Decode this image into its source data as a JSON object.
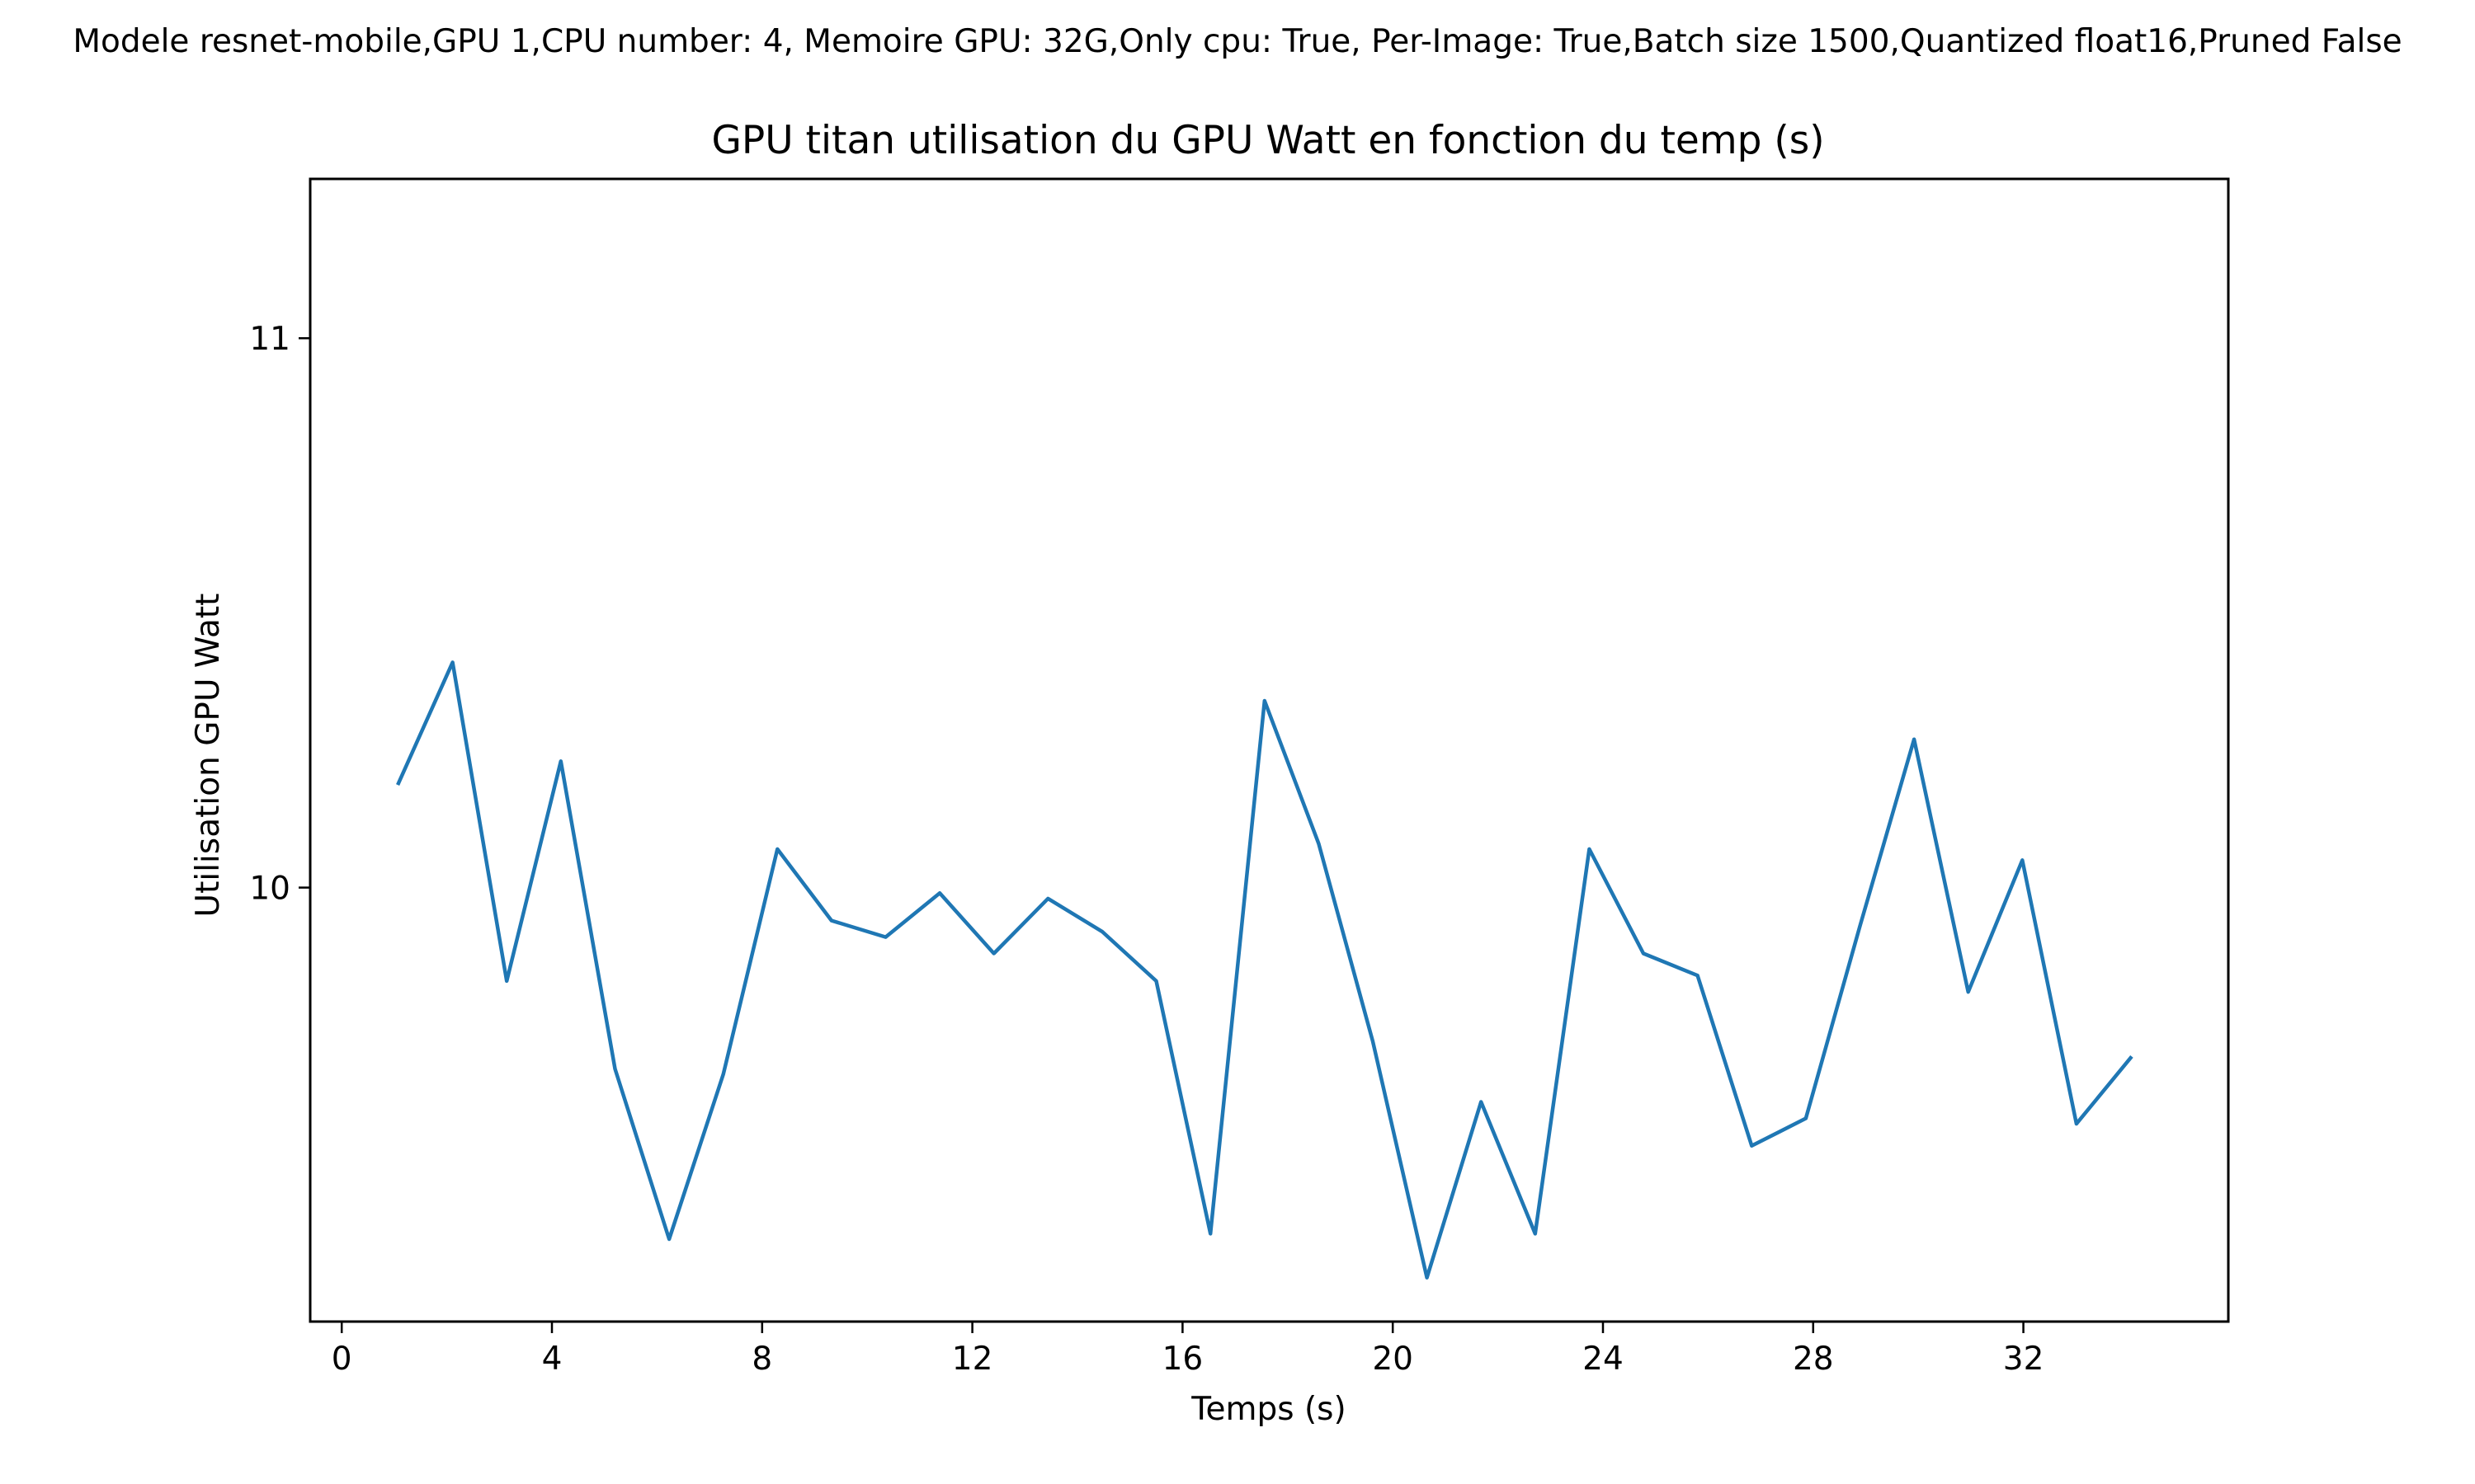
{
  "suptitle": "Modele resnet-mobile,GPU 1,CPU number: 4, Memoire GPU: 32G,Only cpu: True, Per-Image: True,Batch size 1500,Quantized float16,Pruned False",
  "chart_data": {
    "type": "line",
    "title": "GPU titan utilisation du GPU Watt en fonction du temp (s)",
    "xlabel": "Temps (s)",
    "ylabel": "Utilisation GPU Watt",
    "xlim": [
      -0.6,
      35.9
    ],
    "ylim": [
      9.21,
      11.29
    ],
    "xticks": [
      0,
      4,
      8,
      12,
      16,
      20,
      24,
      28,
      32
    ],
    "yticks": [
      10,
      11
    ],
    "grid": false,
    "legend": "none",
    "series": [
      {
        "color": "#1f77b4",
        "x": [
          1.08,
          2.11,
          3.14,
          4.17,
          5.2,
          6.23,
          7.26,
          8.29,
          9.32,
          10.35,
          11.38,
          12.41,
          13.44,
          14.47,
          15.5,
          16.53,
          17.56,
          18.59,
          19.62,
          20.65,
          21.68,
          22.71,
          23.74,
          24.77,
          25.8,
          26.83,
          27.86,
          28.89,
          29.92,
          30.95,
          31.98,
          33.01,
          34.04
        ],
        "y": [
          10.19,
          10.41,
          9.83,
          10.23,
          9.67,
          9.36,
          9.66,
          10.07,
          9.94,
          9.91,
          9.99,
          9.88,
          9.98,
          9.92,
          9.83,
          9.37,
          10.34,
          10.08,
          9.72,
          9.29,
          9.61,
          9.37,
          10.07,
          9.88,
          9.84,
          9.53,
          9.58,
          9.93,
          10.27,
          9.81,
          10.05,
          9.57,
          9.69
        ]
      }
    ]
  }
}
